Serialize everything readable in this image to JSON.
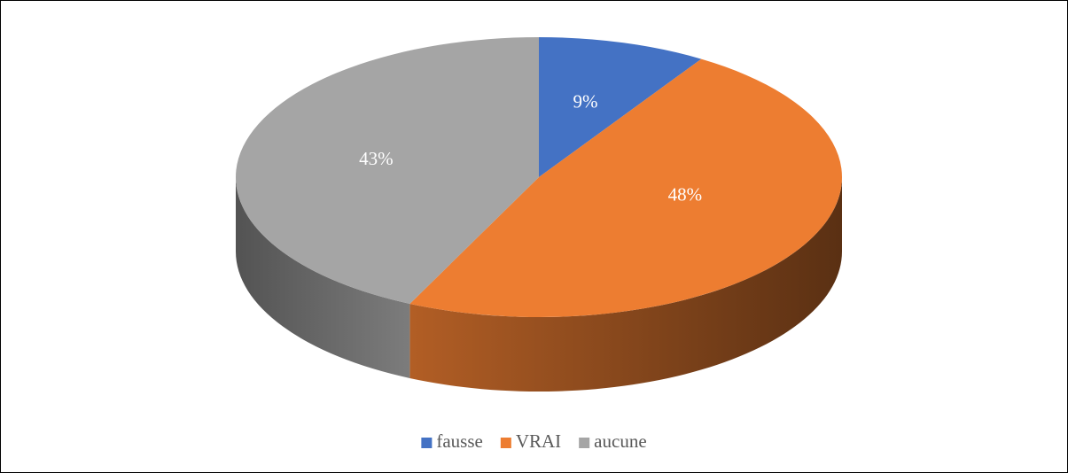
{
  "chart_data": {
    "type": "pie",
    "categories": [
      "fausse",
      "VRAI",
      "aucune"
    ],
    "values": [
      9,
      48,
      43
    ],
    "value_labels": [
      "9%",
      "48%",
      "43%"
    ],
    "colors": [
      "#4472c4",
      "#ed7d31",
      "#a5a5a5"
    ],
    "legend": "bottom"
  }
}
